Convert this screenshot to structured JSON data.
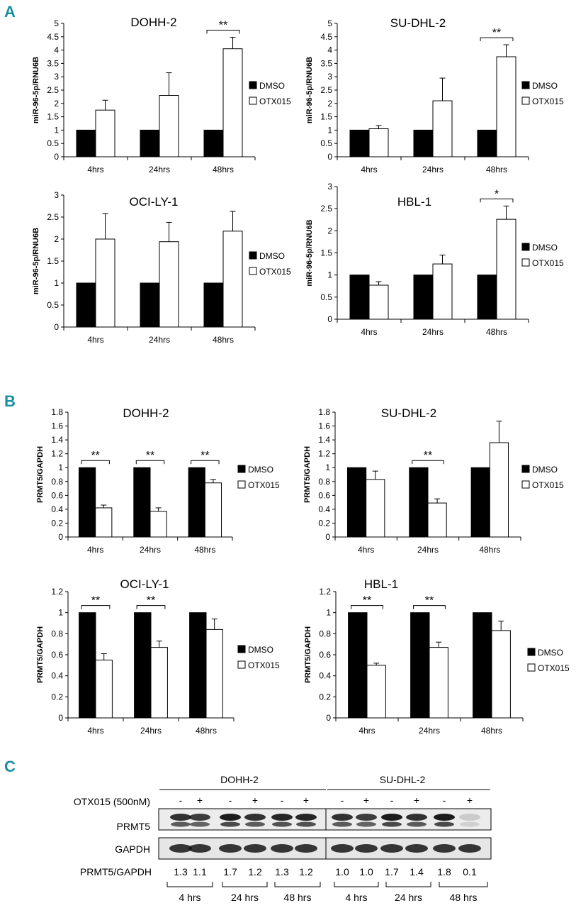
{
  "panels": {
    "A": "A",
    "B": "B",
    "C": "C"
  },
  "legend": {
    "dmso": "DMSO",
    "otx": "OTX015"
  },
  "colors": {
    "dmso": "#000000",
    "otx": "#ffffff",
    "panel_letter": "#1a8fa0"
  },
  "chart_data": [
    {
      "type": "bar",
      "panel": "A",
      "title": "DOHH-2",
      "ylabel": "miR-96-5p/RNU6B",
      "ylim": [
        0,
        5
      ],
      "yticks": [
        "0",
        "0.5",
        "1",
        "1.5",
        "2",
        "2.5",
        "3",
        "3.5",
        "4",
        "4.5",
        "5"
      ],
      "categories": [
        "4hrs",
        "24hrs",
        "48hrs"
      ],
      "series": [
        {
          "name": "DMSO",
          "values": [
            1,
            1,
            1
          ],
          "errors": [
            0,
            0,
            0
          ]
        },
        {
          "name": "OTX015",
          "values": [
            1.75,
            2.3,
            4.05
          ],
          "errors": [
            0.37,
            0.85,
            0.43
          ]
        }
      ],
      "significance": [
        {
          "category": "48hrs",
          "label": "**"
        }
      ]
    },
    {
      "type": "bar",
      "panel": "A",
      "title": "SU-DHL-2",
      "ylabel": "miR-96-5p/RNU6B",
      "ylim": [
        0,
        5
      ],
      "yticks": [
        "0",
        "0.5",
        "1",
        "1.5",
        "2",
        "2.5",
        "3",
        "3.5",
        "4",
        "4.5",
        "5"
      ],
      "categories": [
        "4hrs",
        "24hrs",
        "48hrs"
      ],
      "series": [
        {
          "name": "DMSO",
          "values": [
            1,
            1,
            1
          ],
          "errors": [
            0,
            0,
            0
          ]
        },
        {
          "name": "OTX015",
          "values": [
            1.05,
            2.1,
            3.75
          ],
          "errors": [
            0.12,
            0.85,
            0.45
          ]
        }
      ],
      "significance": [
        {
          "category": "48hrs",
          "label": "**"
        }
      ]
    },
    {
      "type": "bar",
      "panel": "A",
      "title": "OCI-LY-1",
      "ylabel": "miR-96-5p/RNU6B",
      "ylim": [
        0,
        3
      ],
      "yticks": [
        "0",
        "0.5",
        "1",
        "1.5",
        "2",
        "2.5",
        "3"
      ],
      "categories": [
        "4hrs",
        "24hrs",
        "48hrs"
      ],
      "series": [
        {
          "name": "DMSO",
          "values": [
            1,
            1,
            1
          ],
          "errors": [
            0,
            0,
            0
          ]
        },
        {
          "name": "OTX015",
          "values": [
            2.0,
            1.94,
            2.18
          ],
          "errors": [
            0.58,
            0.44,
            0.45
          ]
        }
      ],
      "significance": []
    },
    {
      "type": "bar",
      "panel": "A",
      "title": "HBL-1",
      "ylabel": "miR-96-5p/RNU6B",
      "ylim": [
        0,
        3
      ],
      "yticks": [
        "0",
        "0.5",
        "1",
        "1.5",
        "2",
        "2.5",
        "3"
      ],
      "categories": [
        "4hrs",
        "24hrs",
        "48hrs"
      ],
      "series": [
        {
          "name": "DMSO",
          "values": [
            1,
            1,
            1
          ],
          "errors": [
            0,
            0,
            0
          ]
        },
        {
          "name": "OTX015",
          "values": [
            0.77,
            1.25,
            2.26
          ],
          "errors": [
            0.08,
            0.2,
            0.3
          ]
        }
      ],
      "significance": [
        {
          "category": "48hrs",
          "label": "*"
        }
      ]
    },
    {
      "type": "bar",
      "panel": "B",
      "title": "DOHH-2",
      "ylabel": "PRMT5/GAPDH",
      "ylim": [
        0,
        1.8
      ],
      "yticks": [
        "0",
        "0.2",
        "0.4",
        "0.6",
        "0.8",
        "1",
        "1.2",
        "1.4",
        "1.6",
        "1.8"
      ],
      "categories": [
        "4hrs",
        "24hrs",
        "48hrs"
      ],
      "series": [
        {
          "name": "DMSO",
          "values": [
            1,
            1,
            1
          ],
          "errors": [
            0,
            0,
            0
          ]
        },
        {
          "name": "OTX015",
          "values": [
            0.42,
            0.37,
            0.78
          ],
          "errors": [
            0.04,
            0.05,
            0.05
          ]
        }
      ],
      "significance": [
        {
          "category": "4hrs",
          "label": "**"
        },
        {
          "category": "24hrs",
          "label": "**"
        },
        {
          "category": "48hrs",
          "label": "**"
        }
      ]
    },
    {
      "type": "bar",
      "panel": "B",
      "title": "SU-DHL-2",
      "ylabel": "PRMT5/GAPDH",
      "ylim": [
        0,
        1.8
      ],
      "yticks": [
        "0",
        "0.2",
        "0.4",
        "0.6",
        "0.8",
        "1",
        "1.2",
        "1.4",
        "1.6",
        "1.8"
      ],
      "categories": [
        "4hrs",
        "24hrs",
        "48hrs"
      ],
      "series": [
        {
          "name": "DMSO",
          "values": [
            1,
            1,
            1
          ],
          "errors": [
            0,
            0,
            0
          ]
        },
        {
          "name": "OTX015",
          "values": [
            0.83,
            0.49,
            1.36
          ],
          "errors": [
            0.12,
            0.06,
            0.31
          ]
        }
      ],
      "significance": [
        {
          "category": "24hrs",
          "label": "**"
        }
      ]
    },
    {
      "type": "bar",
      "panel": "B",
      "title": "OCI-LY-1",
      "ylabel": "PRMT5/GAPDH",
      "ylim": [
        0,
        1.2
      ],
      "yticks": [
        "0",
        "0.2",
        "0.4",
        "0.6",
        "0.8",
        "1",
        "1.2"
      ],
      "categories": [
        "4hrs",
        "24hrs",
        "48hrs"
      ],
      "series": [
        {
          "name": "DMSO",
          "values": [
            1,
            1,
            1
          ],
          "errors": [
            0,
            0,
            0
          ]
        },
        {
          "name": "OTX015",
          "values": [
            0.55,
            0.67,
            0.84
          ],
          "errors": [
            0.06,
            0.06,
            0.1
          ]
        }
      ],
      "significance": [
        {
          "category": "4hrs",
          "label": "**"
        },
        {
          "category": "24hrs",
          "label": "**"
        }
      ]
    },
    {
      "type": "bar",
      "panel": "B",
      "title": "HBL-1",
      "ylabel": "PRMT5/GAPDH",
      "ylim": [
        0,
        1.2
      ],
      "yticks": [
        "0",
        "0.2",
        "0.4",
        "0.6",
        "0.8",
        "1",
        "1.2"
      ],
      "categories": [
        "4hrs",
        "24hrs",
        "48hrs"
      ],
      "series": [
        {
          "name": "DMSO",
          "values": [
            1,
            1,
            1
          ],
          "errors": [
            0,
            0,
            0
          ]
        },
        {
          "name": "OTX015",
          "values": [
            0.5,
            0.67,
            0.83
          ],
          "errors": [
            0.02,
            0.05,
            0.09
          ]
        }
      ],
      "significance": [
        {
          "category": "4hrs",
          "label": "**"
        },
        {
          "category": "24hrs",
          "label": "**"
        }
      ]
    }
  ],
  "western": {
    "cell_lines": [
      "DOHH-2",
      "SU-DHL-2"
    ],
    "treatment_label": "OTX015 (500nM)",
    "treatment_signs": [
      "-",
      "+",
      "-",
      "+",
      "-",
      "+",
      "-",
      "+",
      "-",
      "+",
      "-",
      "+"
    ],
    "band_labels": [
      "PRMT5",
      "GAPDH"
    ],
    "ratio_label": "PRMT5/GAPDH",
    "ratios": [
      "1.3",
      "1.1",
      "1.7",
      "1.2",
      "1.3",
      "1.2",
      "1.0",
      "1.0",
      "1.7",
      "1.4",
      "1.8",
      "0.1"
    ],
    "timepoints": [
      "4 hrs",
      "24 hrs",
      "48 hrs",
      "4 hrs",
      "24 hrs",
      "48 hrs"
    ]
  }
}
